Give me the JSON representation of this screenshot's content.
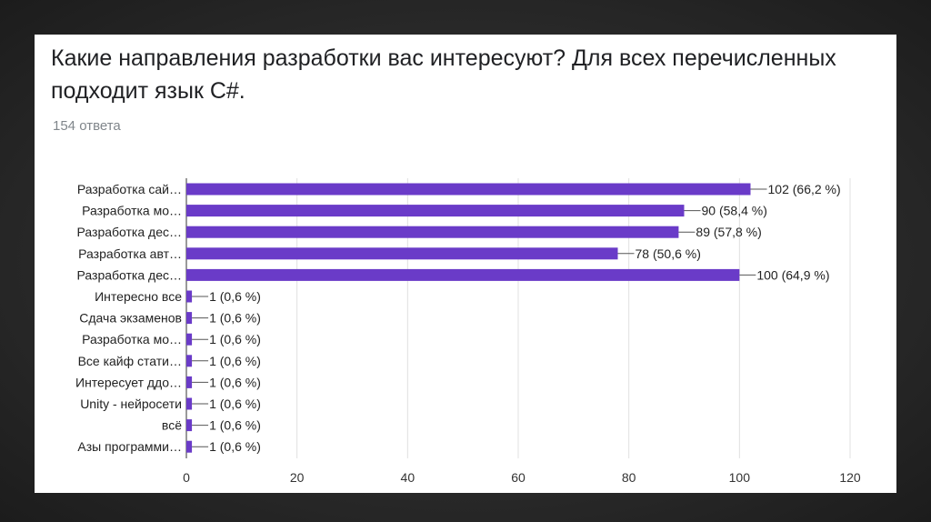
{
  "slide": {
    "title": "Какие направления разработки вас интересуют? Для всех перечисленных подходит язык C#.",
    "subtitle": "154 ответа"
  },
  "colors": {
    "bar": "#6a3bc8",
    "grid": "#e0e0e0",
    "axis": "#333333"
  },
  "chart_data": {
    "type": "bar",
    "orientation": "horizontal",
    "categories": [
      "Разработка сай…",
      "Разработка мо…",
      "Разработка дес…",
      "Разработка авт…",
      "Разработка дес…",
      "Интересно все",
      "Сдача экзаменов",
      "Разработка мо…",
      "Все кайф стати…",
      "Интересует ддо…",
      "Unity - нейросети",
      "всё",
      "Азы программи…"
    ],
    "values": [
      102,
      90,
      89,
      78,
      100,
      1,
      1,
      1,
      1,
      1,
      1,
      1,
      1
    ],
    "data_labels": [
      "102 (66,2 %)",
      "90 (58,4 %)",
      "89 (57,8 %)",
      "78 (50,6 %)",
      "100 (64,9 %)",
      "1 (0,6 %)",
      "1 (0,6 %)",
      "1 (0,6 %)",
      "1 (0,6 %)",
      "1 (0,6 %)",
      "1 (0,6 %)",
      "1 (0,6 %)",
      "1 (0,6 %)"
    ],
    "xlim": [
      0,
      120
    ],
    "xticks": [
      0,
      20,
      40,
      60,
      80,
      100,
      120
    ],
    "grid": true
  }
}
